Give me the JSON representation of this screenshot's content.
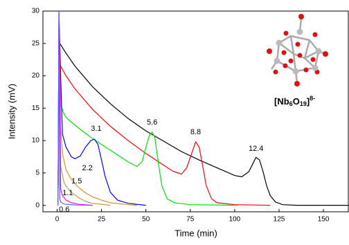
{
  "chart_data": {
    "type": "line",
    "xlabel": "Time (min)",
    "ylabel": "Intensity (mV)",
    "xlim": [
      -8,
      164
    ],
    "ylim": [
      -1,
      30
    ],
    "xticks": [
      0,
      25,
      50,
      75,
      100,
      125,
      150
    ],
    "yticks": [
      0,
      5,
      10,
      15,
      20,
      25,
      30
    ],
    "series": [
      {
        "color": "#000000",
        "x": [
          0.5,
          1,
          2,
          5,
          10,
          20,
          30,
          40,
          50,
          60,
          70,
          80,
          90,
          100,
          104,
          108,
          110,
          112,
          114,
          116,
          118,
          120,
          123,
          127,
          135,
          150,
          164
        ],
        "values": [
          0,
          25.2,
          24.8,
          23.5,
          21.5,
          18.3,
          15.7,
          13.4,
          11.5,
          9.9,
          8.3,
          7,
          5.8,
          4.6,
          4.4,
          5.2,
          6.3,
          7.4,
          7,
          5.2,
          3,
          1.5,
          0.5,
          0.1,
          0,
          0,
          0
        ]
      },
      {
        "color": "#ff0000",
        "x": [
          0.5,
          1,
          2,
          5,
          10,
          20,
          30,
          40,
          50,
          60,
          65,
          70,
          73,
          76,
          78,
          80,
          82,
          84,
          87,
          90,
          100,
          120
        ],
        "values": [
          0,
          22,
          21.5,
          20,
          18,
          14.8,
          12.2,
          10,
          8,
          6.2,
          5.3,
          4.8,
          5.8,
          8.2,
          9.8,
          9,
          6,
          3,
          1,
          0.4,
          0.1,
          0
        ]
      },
      {
        "color": "#00e000",
        "x": [
          0.5,
          1,
          2,
          4,
          6,
          10,
          15,
          20,
          25,
          30,
          35,
          40,
          45,
          48,
          50,
          52,
          53.5,
          55,
          57,
          59,
          62,
          66,
          75,
          102
        ],
        "values": [
          0,
          30,
          15.5,
          14,
          13.3,
          12.4,
          11.3,
          10.3,
          9.4,
          8.5,
          7.6,
          6.7,
          6,
          6.8,
          9,
          10.8,
          11.3,
          10.5,
          6.5,
          3,
          1,
          0.4,
          0.1,
          0
        ]
      },
      {
        "color": "#0000ff",
        "x": [
          0.5,
          1,
          2,
          3,
          5,
          8,
          10,
          13,
          16,
          19,
          21,
          23,
          25,
          27,
          30,
          34,
          40,
          50
        ],
        "values": [
          0,
          30,
          20,
          11,
          9,
          7.5,
          7.2,
          7.6,
          9,
          10,
          10.2,
          9.4,
          7,
          4.5,
          2,
          0.8,
          0.3,
          0
        ]
      },
      {
        "color": "#d9902c",
        "x": [
          0.5,
          1,
          2,
          3,
          5,
          8,
          12,
          16,
          20,
          25,
          30,
          40,
          45
        ],
        "values": [
          0,
          30,
          12,
          8,
          5.5,
          4,
          2.8,
          1.9,
          1.3,
          0.8,
          0.4,
          0.1,
          0
        ]
      },
      {
        "color": "#b0a040",
        "x": [
          0.5,
          1,
          2,
          4,
          6,
          9,
          12,
          16,
          20,
          30
        ],
        "values": [
          0,
          30,
          6,
          3.4,
          2.6,
          1.8,
          1.2,
          0.6,
          0.3,
          0
        ]
      },
      {
        "color": "#ff00ff",
        "x": [
          0.5,
          1,
          2,
          3,
          5,
          8,
          12,
          20
        ],
        "values": [
          0,
          30,
          2.5,
          1.5,
          0.8,
          0.4,
          0.15,
          0
        ]
      },
      {
        "color": "#6060ff",
        "x": [
          0.5,
          1,
          1.5,
          2,
          4,
          10,
          20
        ],
        "values": [
          0,
          30,
          1,
          0.5,
          0.2,
          0.05,
          0
        ]
      }
    ],
    "annotations": [
      {
        "text": "12.4",
        "x": 112,
        "y": 8.7
      },
      {
        "text": "8.8",
        "x": 78,
        "y": 11.3
      },
      {
        "text": "5.6",
        "x": 53.5,
        "y": 12.8
      },
      {
        "text": "3.1",
        "x": 22,
        "y": 11.8
      },
      {
        "text": "2.2",
        "x": 17,
        "y": 5.7
      },
      {
        "text": "1.5",
        "x": 11,
        "y": 3.7
      },
      {
        "text": "1.1",
        "x": 6,
        "y": 1.9
      },
      {
        "text": "0.6",
        "x": 4,
        "y": -0.7
      }
    ],
    "molecule_label": [
      "[Nb",
      "6",
      "O",
      "19",
      "]",
      "8-"
    ]
  }
}
